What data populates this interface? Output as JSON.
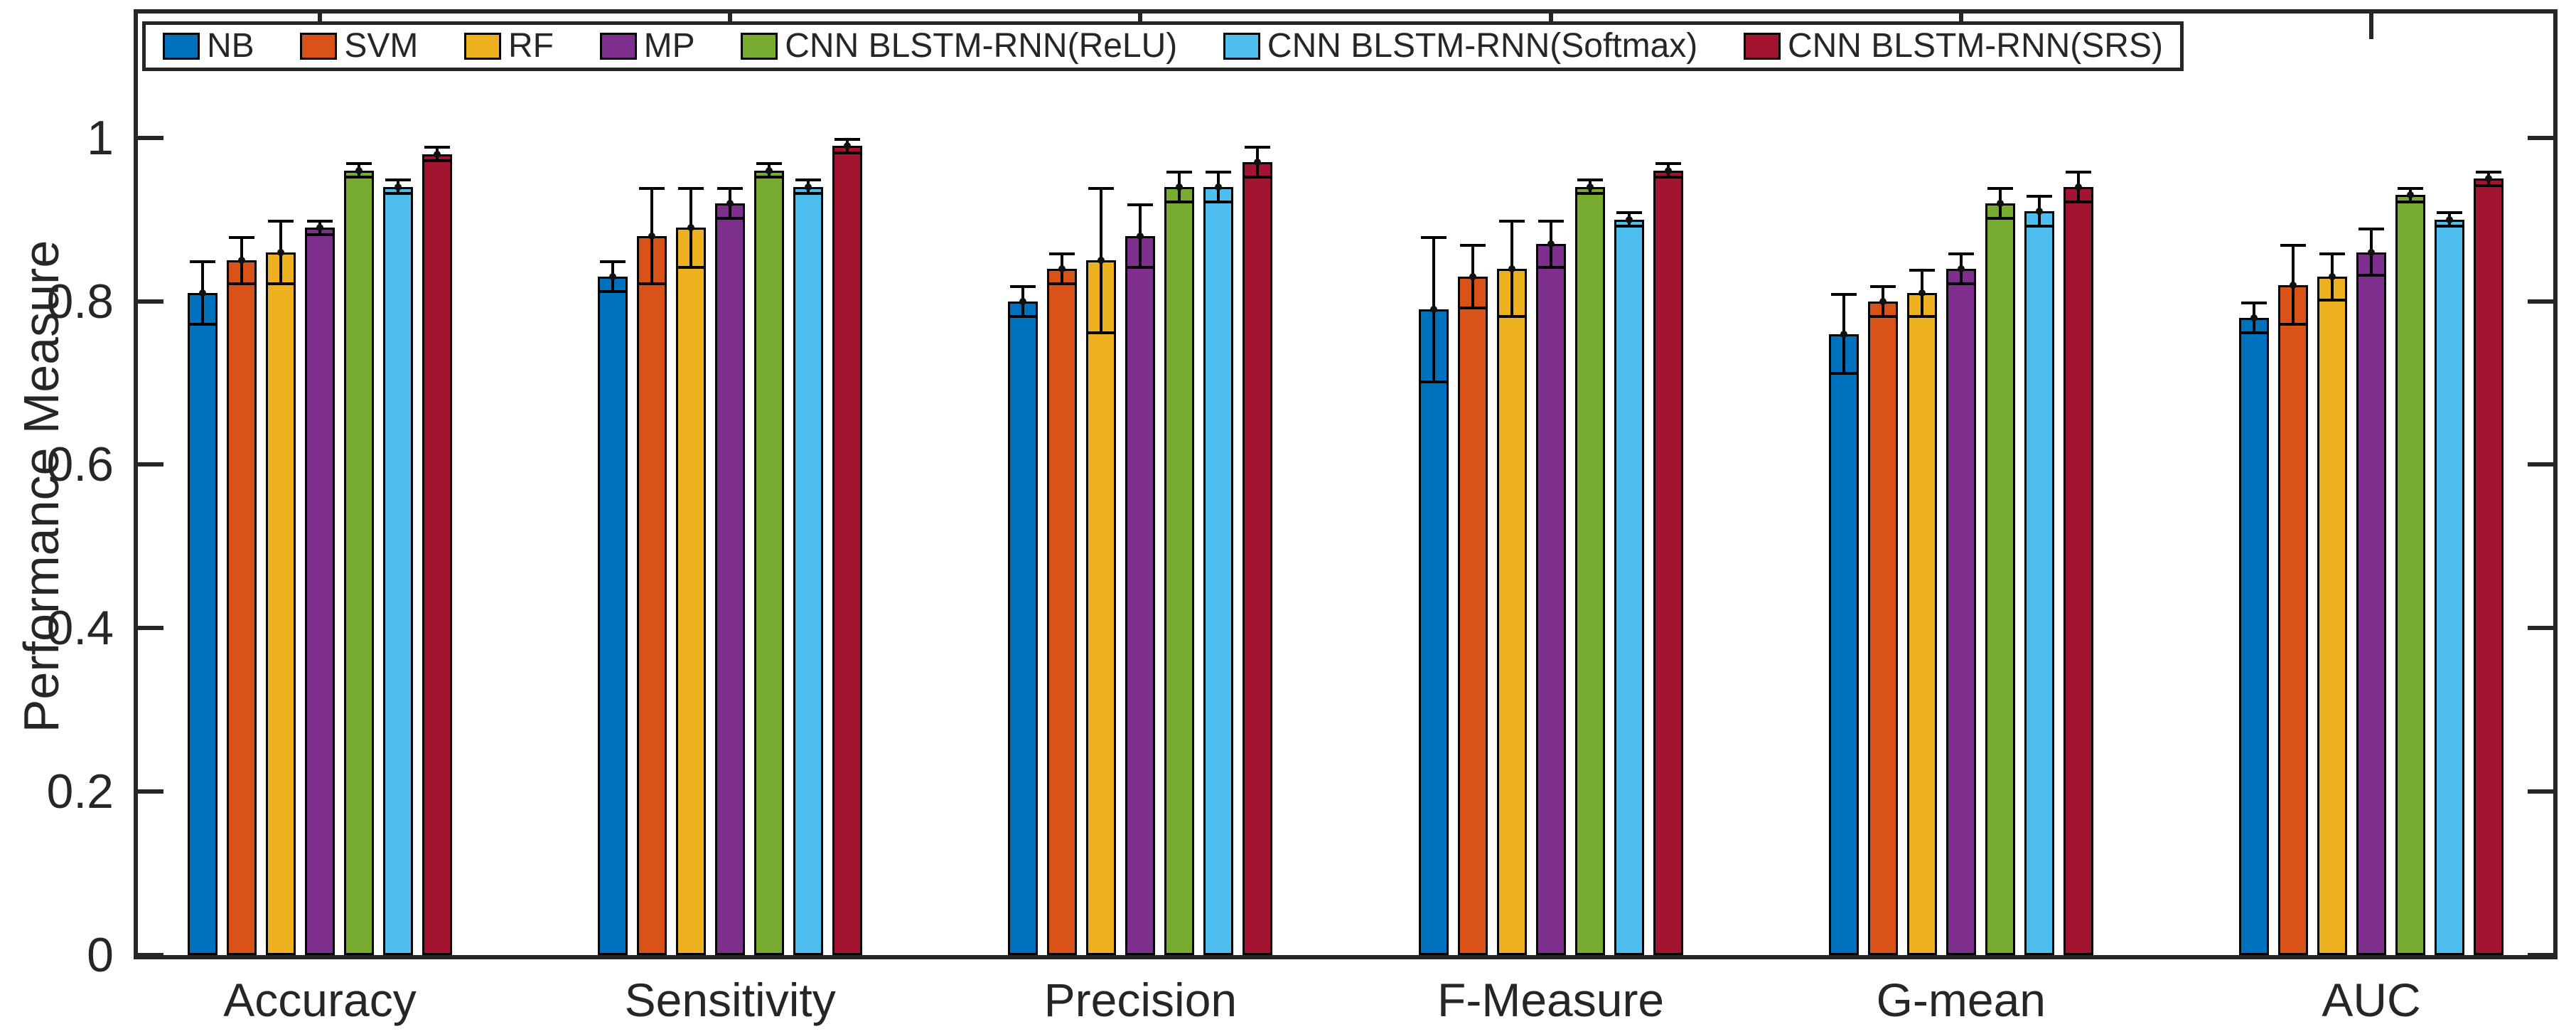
{
  "chart_data": {
    "type": "bar",
    "title": "",
    "xlabel": "",
    "ylabel": "Performance Measure",
    "ylim": [
      0,
      1.152
    ],
    "yticks": [
      0,
      0.2,
      0.4,
      0.6,
      0.8,
      1
    ],
    "ytick_labels": [
      "0",
      "0.2",
      "0.4",
      "0.6",
      "0.8",
      "1"
    ],
    "grid": false,
    "legend_position": "top-inside",
    "error_bars": true,
    "categories": [
      "Accuracy",
      "Sensitivity",
      "Precision",
      "F-Measure",
      "G-mean",
      "AUC"
    ],
    "series": [
      {
        "name": "NB",
        "color": "#0072BD",
        "values": [
          0.81,
          0.83,
          0.8,
          0.79,
          0.76,
          0.78
        ],
        "errors": [
          0.04,
          0.02,
          0.02,
          0.09,
          0.05,
          0.02
        ]
      },
      {
        "name": "SVM",
        "color": "#D95319",
        "values": [
          0.85,
          0.88,
          0.84,
          0.83,
          0.8,
          0.82
        ],
        "errors": [
          0.03,
          0.06,
          0.02,
          0.04,
          0.02,
          0.05
        ]
      },
      {
        "name": "RF",
        "color": "#EDB120",
        "values": [
          0.86,
          0.89,
          0.85,
          0.84,
          0.81,
          0.83
        ],
        "errors": [
          0.04,
          0.05,
          0.09,
          0.06,
          0.03,
          0.03
        ]
      },
      {
        "name": "MP",
        "color": "#7E2F8E",
        "values": [
          0.89,
          0.92,
          0.88,
          0.87,
          0.84,
          0.86
        ],
        "errors": [
          0.01,
          0.02,
          0.04,
          0.03,
          0.02,
          0.03
        ]
      },
      {
        "name": "CNN BLSTM-RNN(ReLU)",
        "color": "#77AC30",
        "values": [
          0.96,
          0.96,
          0.94,
          0.94,
          0.92,
          0.93
        ],
        "errors": [
          0.01,
          0.01,
          0.02,
          0.01,
          0.02,
          0.01
        ]
      },
      {
        "name": "CNN BLSTM-RNN(Softmax)",
        "color": "#4DBEEE",
        "values": [
          0.94,
          0.94,
          0.94,
          0.9,
          0.91,
          0.9
        ],
        "errors": [
          0.01,
          0.01,
          0.02,
          0.01,
          0.02,
          0.01
        ]
      },
      {
        "name": "CNN BLSTM-RNN(SRS)",
        "color": "#A2142F",
        "values": [
          0.98,
          0.99,
          0.97,
          0.96,
          0.94,
          0.95
        ],
        "errors": [
          0.01,
          0.01,
          0.02,
          0.01,
          0.02,
          0.01
        ]
      }
    ],
    "axis_color": "#262626",
    "bar_edge_color": "#000000",
    "error_bar_color": "#000000"
  }
}
